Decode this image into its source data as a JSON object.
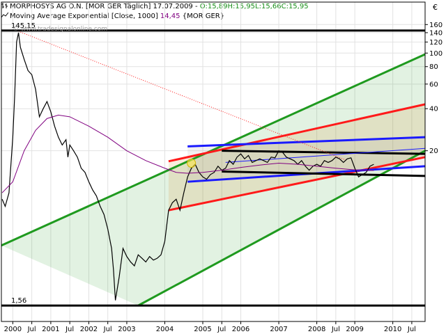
{
  "header": {
    "instrument": "MORPHOSYS AG O.N. [MOR GER  Täglich] 17.07.2009 -",
    "open": "O:15,89",
    "high": "H:15,95",
    "low": "L:15,66",
    "close": "C:15,95",
    "indicator": "Moving Average Exponential [Close, 1000]",
    "indicator_value": "14,45",
    "indicator_symbol": "{MOR GER}",
    "currency": "€",
    "watermark": "© www.tradesignalonline.com"
  },
  "colors": {
    "price": "#000000",
    "ema": "#800080",
    "green_channel": "#1f9a1f",
    "red_channel": "#ff1a1a",
    "blue_channel": "#1a1aff",
    "black_channel": "#000000",
    "header_open": "#1a8f1a",
    "header_indicator_value": "#800080"
  },
  "chart_data": {
    "type": "line",
    "title": "MORPHOSYS AG O.N. [MOR GER  Täglich] 17.07.2009",
    "xlabel": "",
    "ylabel": "€",
    "yscale": "log",
    "xlim": [
      1999.7,
      2010.85
    ],
    "ylim": [
      1.2,
      170
    ],
    "grid": true,
    "y_ticks": [
      160,
      140,
      120,
      100,
      80,
      60,
      40,
      20
    ],
    "x_tick_labels": [
      {
        "x": 2000.0,
        "label": "2000"
      },
      {
        "x": 2000.5,
        "label": "Jul"
      },
      {
        "x": 2001.0,
        "label": "2001"
      },
      {
        "x": 2001.5,
        "label": "Jul"
      },
      {
        "x": 2002.0,
        "label": "2002"
      },
      {
        "x": 2002.5,
        "label": "Jul"
      },
      {
        "x": 2003.0,
        "label": "2003"
      },
      {
        "x": 2004.0,
        "label": "2004"
      },
      {
        "x": 2005.0,
        "label": "2005"
      },
      {
        "x": 2005.5,
        "label": "Jul"
      },
      {
        "x": 2006.0,
        "label": "2006"
      },
      {
        "x": 2007.0,
        "label": "2007"
      },
      {
        "x": 2008.0,
        "label": "2008"
      },
      {
        "x": 2008.5,
        "label": "Jul"
      },
      {
        "x": 2009.0,
        "label": "2009"
      },
      {
        "x": 2010.0,
        "label": "2010"
      },
      {
        "x": 2010.5,
        "label": "Jul"
      }
    ],
    "levels": [
      {
        "name": "high",
        "value": 145,
        "label": "145,15"
      },
      {
        "name": "low",
        "value": 1.56,
        "label": "1,56"
      }
    ],
    "series": [
      {
        "name": "MORPHOSYS AG O.N.",
        "x": [
          1999.72,
          1999.8,
          1999.9,
          2000.0,
          2000.05,
          2000.1,
          2000.15,
          2000.2,
          2000.3,
          2000.4,
          2000.5,
          2000.6,
          2000.7,
          2000.8,
          2000.9,
          2001.0,
          2001.1,
          2001.2,
          2001.3,
          2001.4,
          2001.45,
          2001.5,
          2001.6,
          2001.7,
          2001.8,
          2001.9,
          2002.0,
          2002.1,
          2002.2,
          2002.3,
          2002.4,
          2002.5,
          2002.6,
          2002.65,
          2002.7,
          2002.8,
          2002.9,
          2003.0,
          2003.1,
          2003.2,
          2003.3,
          2003.4,
          2003.5,
          2003.6,
          2003.7,
          2003.8,
          2003.9,
          2004.0,
          2004.1,
          2004.2,
          2004.3,
          2004.4,
          2004.5,
          2004.6,
          2004.7,
          2004.8,
          2004.9,
          2005.0,
          2005.1,
          2005.2,
          2005.3,
          2005.4,
          2005.5,
          2005.6,
          2005.7,
          2005.8,
          2005.9,
          2006.0,
          2006.1,
          2006.2,
          2006.3,
          2006.4,
          2006.5,
          2006.6,
          2006.7,
          2006.8,
          2006.9,
          2007.0,
          2007.1,
          2007.2,
          2007.3,
          2007.4,
          2007.5,
          2007.6,
          2007.7,
          2007.8,
          2007.9,
          2008.0,
          2008.1,
          2008.2,
          2008.3,
          2008.4,
          2008.5,
          2008.6,
          2008.7,
          2008.8,
          2008.9,
          2009.0,
          2009.1,
          2009.2,
          2009.3,
          2009.4,
          2009.5
        ],
        "values": [
          9,
          8,
          10,
          25,
          50,
          120,
          140,
          110,
          90,
          75,
          70,
          55,
          35,
          40,
          45,
          38,
          30,
          25,
          22,
          24,
          18,
          22,
          20,
          18,
          15,
          14,
          12,
          10.5,
          9.5,
          8,
          7,
          5.5,
          4,
          2.8,
          1.7,
          2.5,
          4,
          3.5,
          3.2,
          3.0,
          3.6,
          3.4,
          3.2,
          3.5,
          3.3,
          3.4,
          3.6,
          4.5,
          7.5,
          8.5,
          9,
          7.5,
          10,
          13,
          15,
          16,
          14,
          13,
          12.5,
          13.5,
          14,
          15.5,
          14.5,
          15,
          17,
          16,
          18,
          19,
          17.5,
          18.5,
          16.5,
          17,
          17.5,
          17,
          16.5,
          18,
          17.8,
          20,
          19.5,
          18,
          17.5,
          17,
          16,
          17,
          15.5,
          14.5,
          15.5,
          16,
          15.5,
          17,
          16.5,
          17,
          18,
          17.5,
          16.5,
          17.5,
          17.8,
          15,
          13,
          13.5,
          14,
          15.5,
          16
        ]
      },
      {
        "name": "Moving Average Exponential [Close, 1000]",
        "x": [
          1999.72,
          2000.0,
          2000.3,
          2000.6,
          2000.9,
          2001.2,
          2001.5,
          2002.0,
          2002.5,
          2003.0,
          2003.5,
          2004.0,
          2004.3,
          2004.6,
          2005.0,
          2005.5,
          2006.0,
          2006.5,
          2007.0,
          2007.5,
          2008.0,
          2008.5,
          2009.0,
          2009.5
        ],
        "values": [
          10,
          12,
          20,
          28,
          34,
          36,
          35,
          30,
          25,
          20,
          17,
          15,
          14,
          13.8,
          14,
          14.5,
          15.2,
          15.8,
          16.3,
          16,
          15.5,
          15,
          14.6,
          14.45
        ]
      }
    ],
    "trend_lines": [
      {
        "name": "green-channel-upper",
        "color": "green",
        "points": [
          [
            1999.7,
            4.2
          ],
          [
            2010.85,
            98
          ]
        ]
      },
      {
        "name": "green-channel-lower",
        "color": "green",
        "points": [
          [
            2003.3,
            1.56
          ],
          [
            2010.85,
            20
          ]
        ]
      },
      {
        "name": "red-channel-upper",
        "color": "red",
        "points": [
          [
            2004.1,
            16.8
          ],
          [
            2010.85,
            43
          ]
        ]
      },
      {
        "name": "red-channel-lower",
        "color": "red",
        "points": [
          [
            2004.1,
            7.5
          ],
          [
            2010.85,
            18
          ]
        ]
      },
      {
        "name": "blue-channel-upper",
        "color": "blue",
        "points": [
          [
            2004.6,
            21.5
          ],
          [
            2010.85,
            25
          ]
        ]
      },
      {
        "name": "blue-channel-lower",
        "color": "blue",
        "points": [
          [
            2004.6,
            12
          ],
          [
            2010.85,
            15.5
          ]
        ]
      },
      {
        "name": "black-channel-upper",
        "color": "black",
        "points": [
          [
            2005.5,
            20
          ],
          [
            2010.85,
            19
          ]
        ]
      },
      {
        "name": "black-channel-lower",
        "color": "black",
        "points": [
          [
            2005.5,
            14.2
          ],
          [
            2010.85,
            13.2
          ]
        ]
      },
      {
        "name": "thin-blue-line",
        "color": "blue",
        "points": [
          [
            2005.6,
            16.5
          ],
          [
            2010.85,
            20.8
          ]
        ]
      },
      {
        "name": "dotted-red-line",
        "color": "red",
        "points": [
          [
            2000.1,
            145
          ],
          [
            2008.8,
            17
          ]
        ]
      }
    ]
  }
}
